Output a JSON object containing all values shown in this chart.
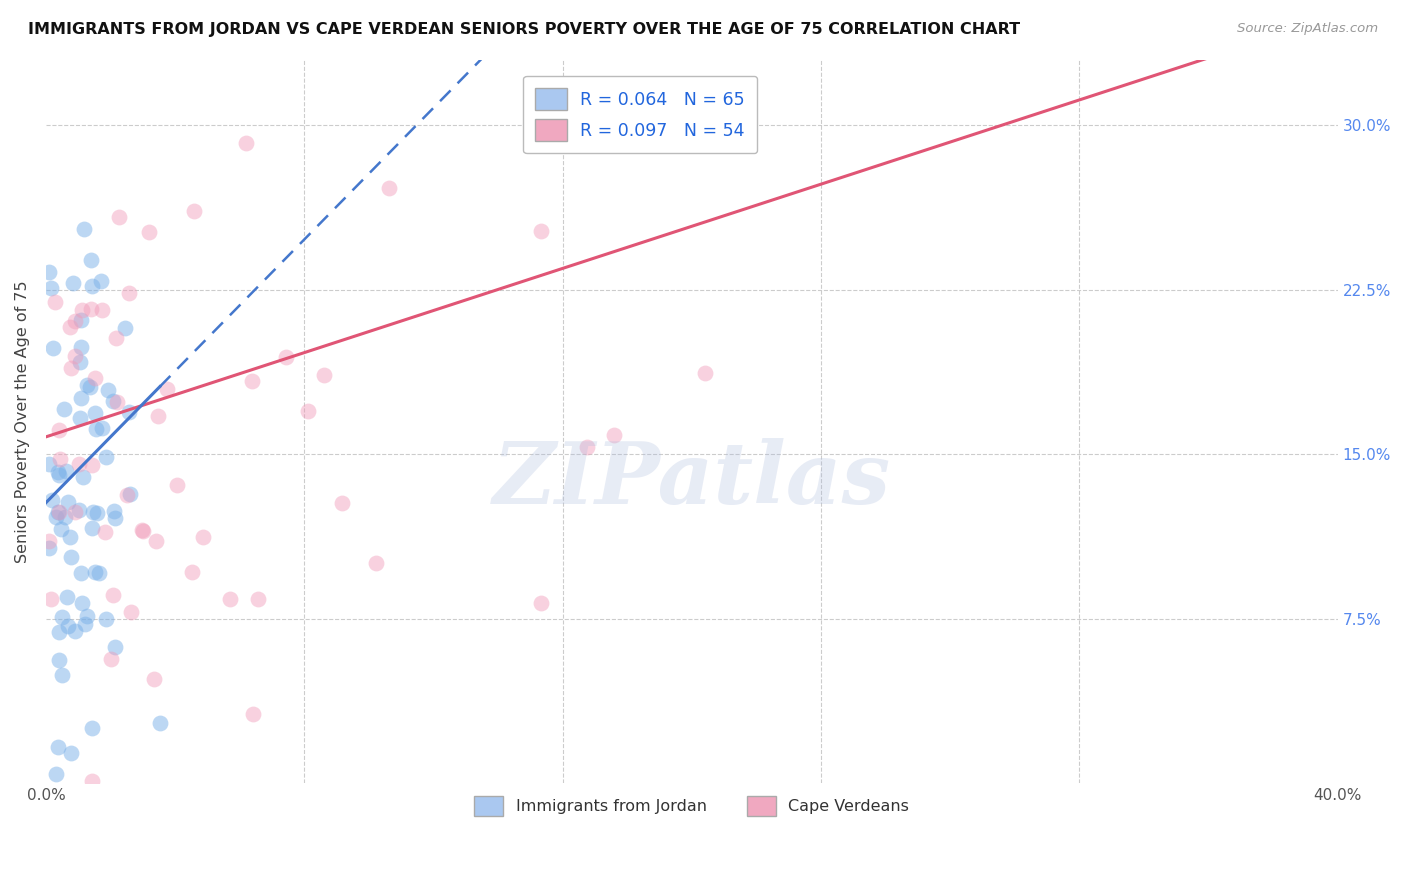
{
  "title": "IMMIGRANTS FROM JORDAN VS CAPE VERDEAN SENIORS POVERTY OVER THE AGE OF 75 CORRELATION CHART",
  "source": "Source: ZipAtlas.com",
  "ylabel": "Seniors Poverty Over the Age of 75",
  "xlim": [
    0,
    0.4
  ],
  "ylim": [
    0,
    0.33
  ],
  "ytick_vals": [
    0.0,
    0.075,
    0.15,
    0.225,
    0.3
  ],
  "ytick_labels": [
    "",
    "7.5%",
    "15.0%",
    "22.5%",
    "30.0%"
  ],
  "legend1_label": "R = 0.064   N = 65",
  "legend2_label": "R = 0.097   N = 54",
  "legend1_color": "#aac8f0",
  "legend2_color": "#f0a8c0",
  "blue_color": "#7ab0e8",
  "pink_color": "#f09ab8",
  "blue_line_color": "#4477cc",
  "pink_line_color": "#e05575",
  "background_color": "#ffffff",
  "watermark": "ZIPatlas",
  "blue_intercept": 0.128,
  "blue_slope": 1.5,
  "pink_intercept": 0.158,
  "pink_slope": 0.48,
  "jordan_seed": 77,
  "cape_seed": 33
}
